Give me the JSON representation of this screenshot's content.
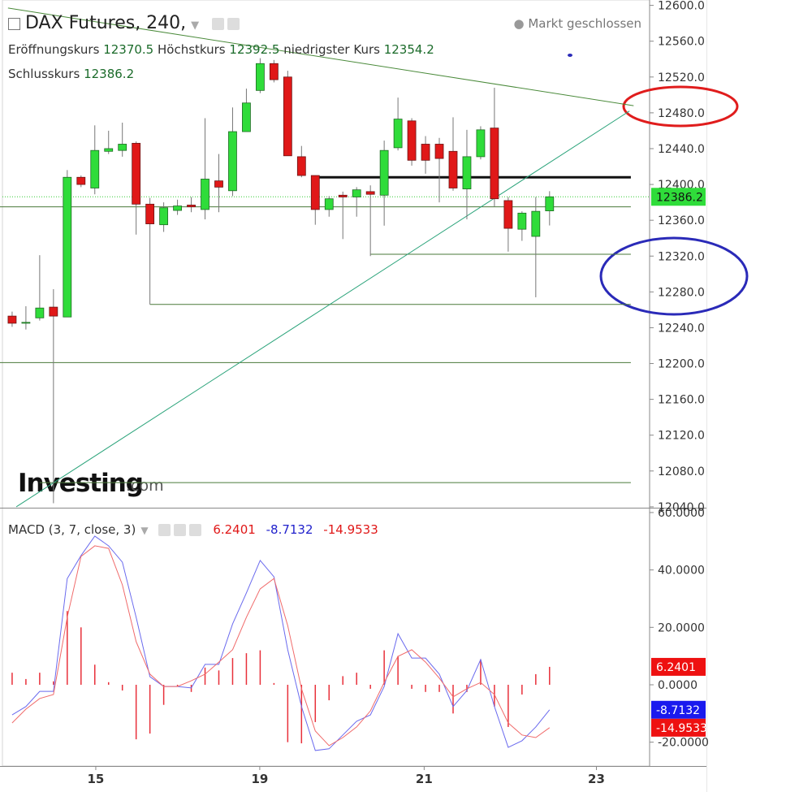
{
  "chart_data": [
    {
      "type": "candlestick",
      "title": "DAX Futures, 240,",
      "status": "Markt geschlossen",
      "ohlc_labels": [
        "Eröffnungskurs",
        "Höchstkurs",
        "niedrigster Kurs",
        "Schlusskurs"
      ],
      "open": [
        12253,
        12245,
        12251,
        12263,
        12252,
        12408,
        12396,
        12437,
        12438,
        12446,
        12378,
        12355,
        12371,
        12377,
        12372,
        12404,
        12393,
        12459,
        12505,
        12535,
        12520,
        12431,
        12410,
        12372,
        12388,
        12386,
        12392,
        12388,
        12441,
        12471,
        12445,
        12445,
        12437,
        12395,
        12431,
        12463,
        12382,
        12350,
        12342,
        12370.5
      ],
      "high": [
        12258,
        12264,
        12321,
        12283,
        12416,
        12410,
        12466,
        12460,
        12469,
        12448,
        12385,
        12380,
        12383,
        12386,
        12474,
        12434,
        12486,
        12507,
        12541,
        12539,
        12527,
        12443,
        12410,
        12387,
        12392,
        12397,
        12399,
        12449,
        12497,
        12474,
        12454,
        12452,
        12475,
        12461,
        12465,
        12508,
        12386,
        12370,
        12386,
        12392.5
      ],
      "low": [
        12241,
        12238,
        12248,
        12044,
        12252,
        12397,
        12389,
        12434,
        12431,
        12344,
        12266,
        12347,
        12366,
        12369,
        12361,
        12369,
        12387,
        12459,
        12502,
        12514,
        12432,
        12408,
        12355,
        12364,
        12339,
        12364,
        12320,
        12354,
        12438,
        12421,
        12412,
        12380,
        12393,
        12361,
        12428,
        12375,
        12325,
        12337,
        12274,
        12354.2
      ],
      "close": [
        12245,
        12246,
        12262,
        12253,
        12408,
        12400,
        12438,
        12440,
        12445,
        12378,
        12356,
        12374,
        12376,
        12375,
        12406,
        12397,
        12459,
        12491,
        12535,
        12517,
        12432,
        12410,
        12372,
        12384,
        12386,
        12394,
        12389,
        12438,
        12473,
        12427,
        12427,
        12429,
        12396,
        12431,
        12461,
        12384,
        12351,
        12368,
        12370,
        12386.2
      ],
      "up_color": "#2fdc3a",
      "down_color": "#e01818",
      "xlim": [
        -0.88,
        46.26
      ],
      "xticks": [
        {
          "value": 6.07,
          "label": "15"
        },
        {
          "value": 17.97,
          "label": "19"
        },
        {
          "value": 29.9,
          "label": "21"
        },
        {
          "value": 42.4,
          "label": "23"
        }
      ],
      "ylim": [
        12039,
        12606
      ],
      "yticks": [
        {
          "value": 12040,
          "label": "12040.0"
        },
        {
          "value": 12080,
          "label": "12080.0"
        },
        {
          "value": 12120,
          "label": "12120.0"
        },
        {
          "value": 12160,
          "label": "12160.0"
        },
        {
          "value": 12200,
          "label": "12200.0"
        },
        {
          "value": 12240,
          "label": "12240.0"
        },
        {
          "value": 12280,
          "label": "12280.0"
        },
        {
          "value": 12320,
          "label": "12320.0"
        },
        {
          "value": 12360,
          "label": "12360.0"
        },
        {
          "value": 12400,
          "label": "12400.0"
        },
        {
          "value": 12440,
          "label": "12440.0"
        },
        {
          "value": 12480,
          "label": "12480.0"
        },
        {
          "value": 12520,
          "label": "12520.0"
        },
        {
          "value": 12560,
          "label": "12560.0"
        },
        {
          "value": 12600,
          "label": "12600.0"
        }
      ],
      "levels": [
        {
          "price": 12408,
          "start": 22,
          "color": "#111111"
        },
        {
          "price": 12375,
          "start": -0.88,
          "color": "#4a7a3a"
        },
        {
          "price": 12322,
          "start": 26,
          "color": "#4a7a3a"
        },
        {
          "price": 12266,
          "start": 10,
          "color": "#4a7a3a"
        },
        {
          "price": 12201,
          "start": -0.88,
          "color": "#4a7a3a"
        },
        {
          "price": 12067,
          "start": 2,
          "color": "#4a7a3a"
        }
      ],
      "level_end": 44.9,
      "trendlines": [
        {
          "x": [
            -0.3,
            45.1
          ],
          "y": [
            12597,
            12488
          ],
          "color": "#4a8a3a"
        },
        {
          "x": [
            0.3,
            44.8
          ],
          "y": [
            12040,
            12482
          ],
          "color": "#2aa37a"
        }
      ],
      "watermark": "Investing",
      "watermark_suffix": ".com"
    },
    {
      "type": "macd",
      "title": "MACD (3, 7, close, 3)",
      "xlim": [
        -0.88,
        46.26
      ],
      "ylim": [
        -28.3,
        61.4
      ],
      "yticks": [
        {
          "value": 60,
          "label": "60.0000"
        },
        {
          "value": 40,
          "label": "40.0000"
        },
        {
          "value": 20,
          "label": "20.0000"
        },
        {
          "value": 0,
          "label": "0.0000"
        },
        {
          "value": -20,
          "label": "-20.0000"
        }
      ],
      "histogram": {
        "color": "#e8303a",
        "values": [
          4.2,
          2,
          4.2,
          1.2,
          25.7,
          20,
          7,
          0.9,
          -2,
          -19,
          -17,
          -7,
          -0.4,
          -2.5,
          6,
          5,
          9.3,
          11,
          12,
          0.6,
          -20,
          -20.4,
          -13,
          -5.4,
          3,
          4.2,
          -1.4,
          12,
          10,
          -1.4,
          -2.5,
          -2.5,
          -10,
          -2.5,
          8.8,
          -7.6,
          -14.7,
          -3.4,
          3.7,
          6.2401
        ]
      },
      "series": [
        {
          "color": "#6a6aee",
          "values": [
            -10.5,
            -7.6,
            -2.3,
            -2.3,
            37,
            45,
            51.8,
            48.4,
            42.7,
            23.5,
            2.8,
            -0.6,
            -0.6,
            -1.1,
            7.1,
            7.1,
            21.2,
            32,
            43.3,
            37.6,
            12.2,
            -7.6,
            -22.9,
            -22.3,
            -17.5,
            -12.7,
            -10.5,
            -0.6,
            17.8,
            9.3,
            9.3,
            3.7,
            -7.6,
            -2,
            8.8,
            -7.6,
            -21.8,
            -19.5,
            -14.7,
            -8.7132
          ]
        },
        {
          "color": "#f06a6a",
          "values": [
            -13.3,
            -8.5,
            -4.8,
            -3.4,
            23.5,
            44.7,
            48.4,
            47.5,
            34.8,
            15,
            3.7,
            -0.6,
            -0.6,
            1.4,
            3.7,
            7.9,
            12.2,
            23.5,
            33.4,
            37,
            20.6,
            -1.4,
            -16.1,
            -21.2,
            -18.4,
            -14.7,
            -9.1,
            0.8,
            9.9,
            12.2,
            7.9,
            2.3,
            -4.2,
            -1.4,
            0.8,
            -3.4,
            -13.3,
            -17.5,
            -18.4,
            -14.9533
          ]
        }
      ]
    }
  ]
}
